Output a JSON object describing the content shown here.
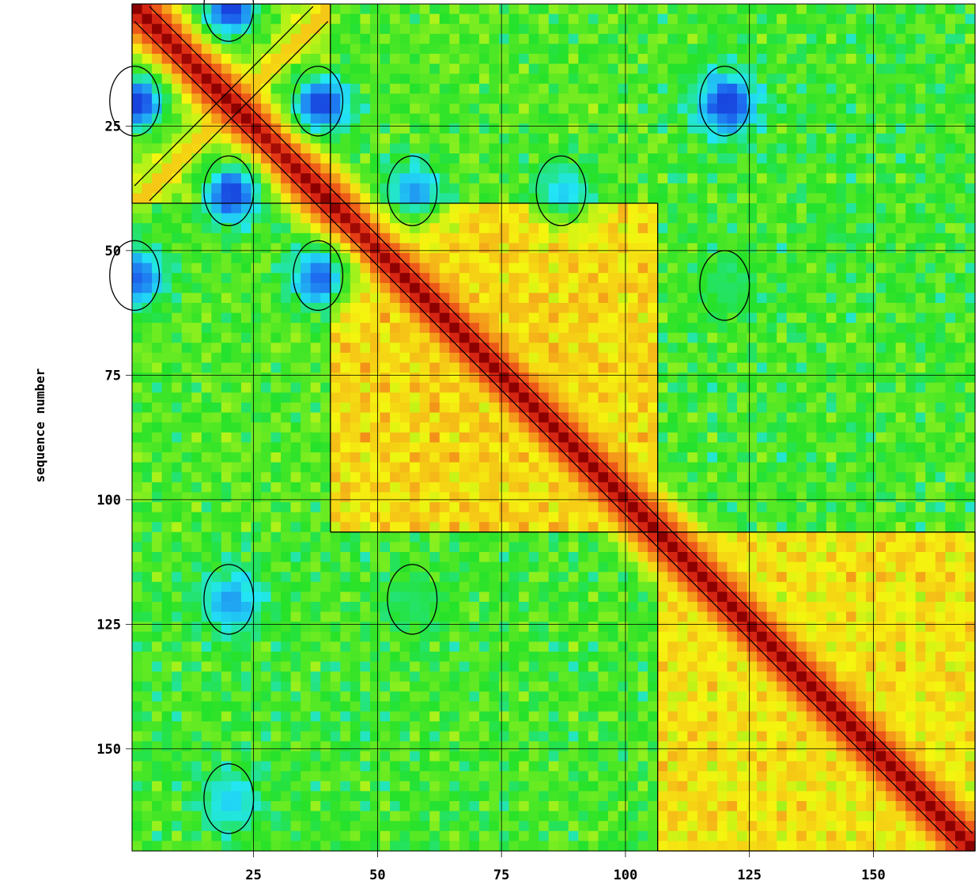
{
  "chart_data": {
    "type": "heatmap",
    "title": "",
    "xlabel": "",
    "ylabel": "sequence number",
    "xlim": [
      1,
      170
    ],
    "ylim": [
      1,
      170
    ],
    "y_inverted": true,
    "x_ticks": [
      25,
      50,
      75,
      100,
      125,
      150
    ],
    "y_ticks": [
      25,
      50,
      75,
      100,
      125,
      150
    ],
    "grid": true,
    "contours": true,
    "colormap": [
      "#1010c8",
      "#1e6ef0",
      "#22e6f5",
      "#25e22a",
      "#8ff01e",
      "#f5f50f",
      "#f5b019",
      "#f06419",
      "#dc2814",
      "#8c0000"
    ],
    "blocks": [
      {
        "name": "block-1",
        "start": 1,
        "end": 40
      },
      {
        "name": "block-2",
        "start": 41,
        "end": 106
      },
      {
        "name": "block-3",
        "start": 107,
        "end": 170
      }
    ],
    "features": [
      {
        "kind": "diagonal",
        "from": 1,
        "to": 170,
        "level": 1.0
      },
      {
        "kind": "antidiagonal",
        "x_range": [
          1,
          40
        ],
        "y_range": [
          1,
          40
        ],
        "level": 0.7
      },
      {
        "kind": "low-spot",
        "x": 20,
        "y": 1,
        "level": 0.05
      },
      {
        "kind": "low-spot",
        "x": 1,
        "y": 20,
        "level": 0.05
      },
      {
        "kind": "low-spot",
        "x": 38,
        "y": 20,
        "level": 0.05
      },
      {
        "kind": "low-spot",
        "x": 20,
        "y": 38,
        "level": 0.05
      },
      {
        "kind": "low-spot",
        "x": 120,
        "y": 20,
        "level": 0.05
      },
      {
        "kind": "low-spot",
        "x": 57,
        "y": 38,
        "level": 0.15
      },
      {
        "kind": "low-spot",
        "x": 87,
        "y": 38,
        "level": 0.2
      },
      {
        "kind": "low-spot",
        "x": 38,
        "y": 55,
        "level": 0.1
      },
      {
        "kind": "low-spot",
        "x": 1,
        "y": 55,
        "level": 0.1
      },
      {
        "kind": "low-spot",
        "x": 20,
        "y": 120,
        "level": 0.15
      },
      {
        "kind": "low-spot",
        "x": 20,
        "y": 160,
        "level": 0.2
      },
      {
        "kind": "low-spot",
        "x": 57,
        "y": 120,
        "level": 0.3
      },
      {
        "kind": "low-spot",
        "x": 120,
        "y": 57,
        "level": 0.3
      }
    ]
  }
}
